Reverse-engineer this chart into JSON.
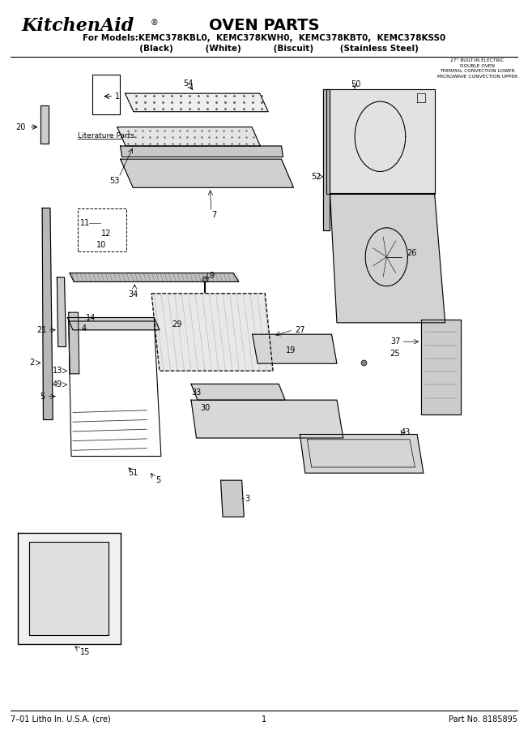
{
  "title": "OVEN PARTS",
  "brand": "KitchenAid",
  "brand_reg": "®",
  "models_line": "For Models:KEMC378KBL0,  KEMC378KWH0,  KEMC378KBT0,  KEMC378KSS0",
  "colors_line": "          (Black)           (White)           (Biscuit)         (Stainless Steel)",
  "side_note_lines": [
    "27\" BUILT-IN ELECTRIC",
    "DOUBLE OVEN",
    "THERMAL CONVECTION LOWER",
    "MICROWAVE CONVECTION UPPER"
  ],
  "footer_left": "7–01 Litho In. U.S.A. (cre)",
  "footer_center": "1",
  "footer_right": "Part No. 8185895",
  "bg_color": "#ffffff",
  "line_color": "#000000"
}
